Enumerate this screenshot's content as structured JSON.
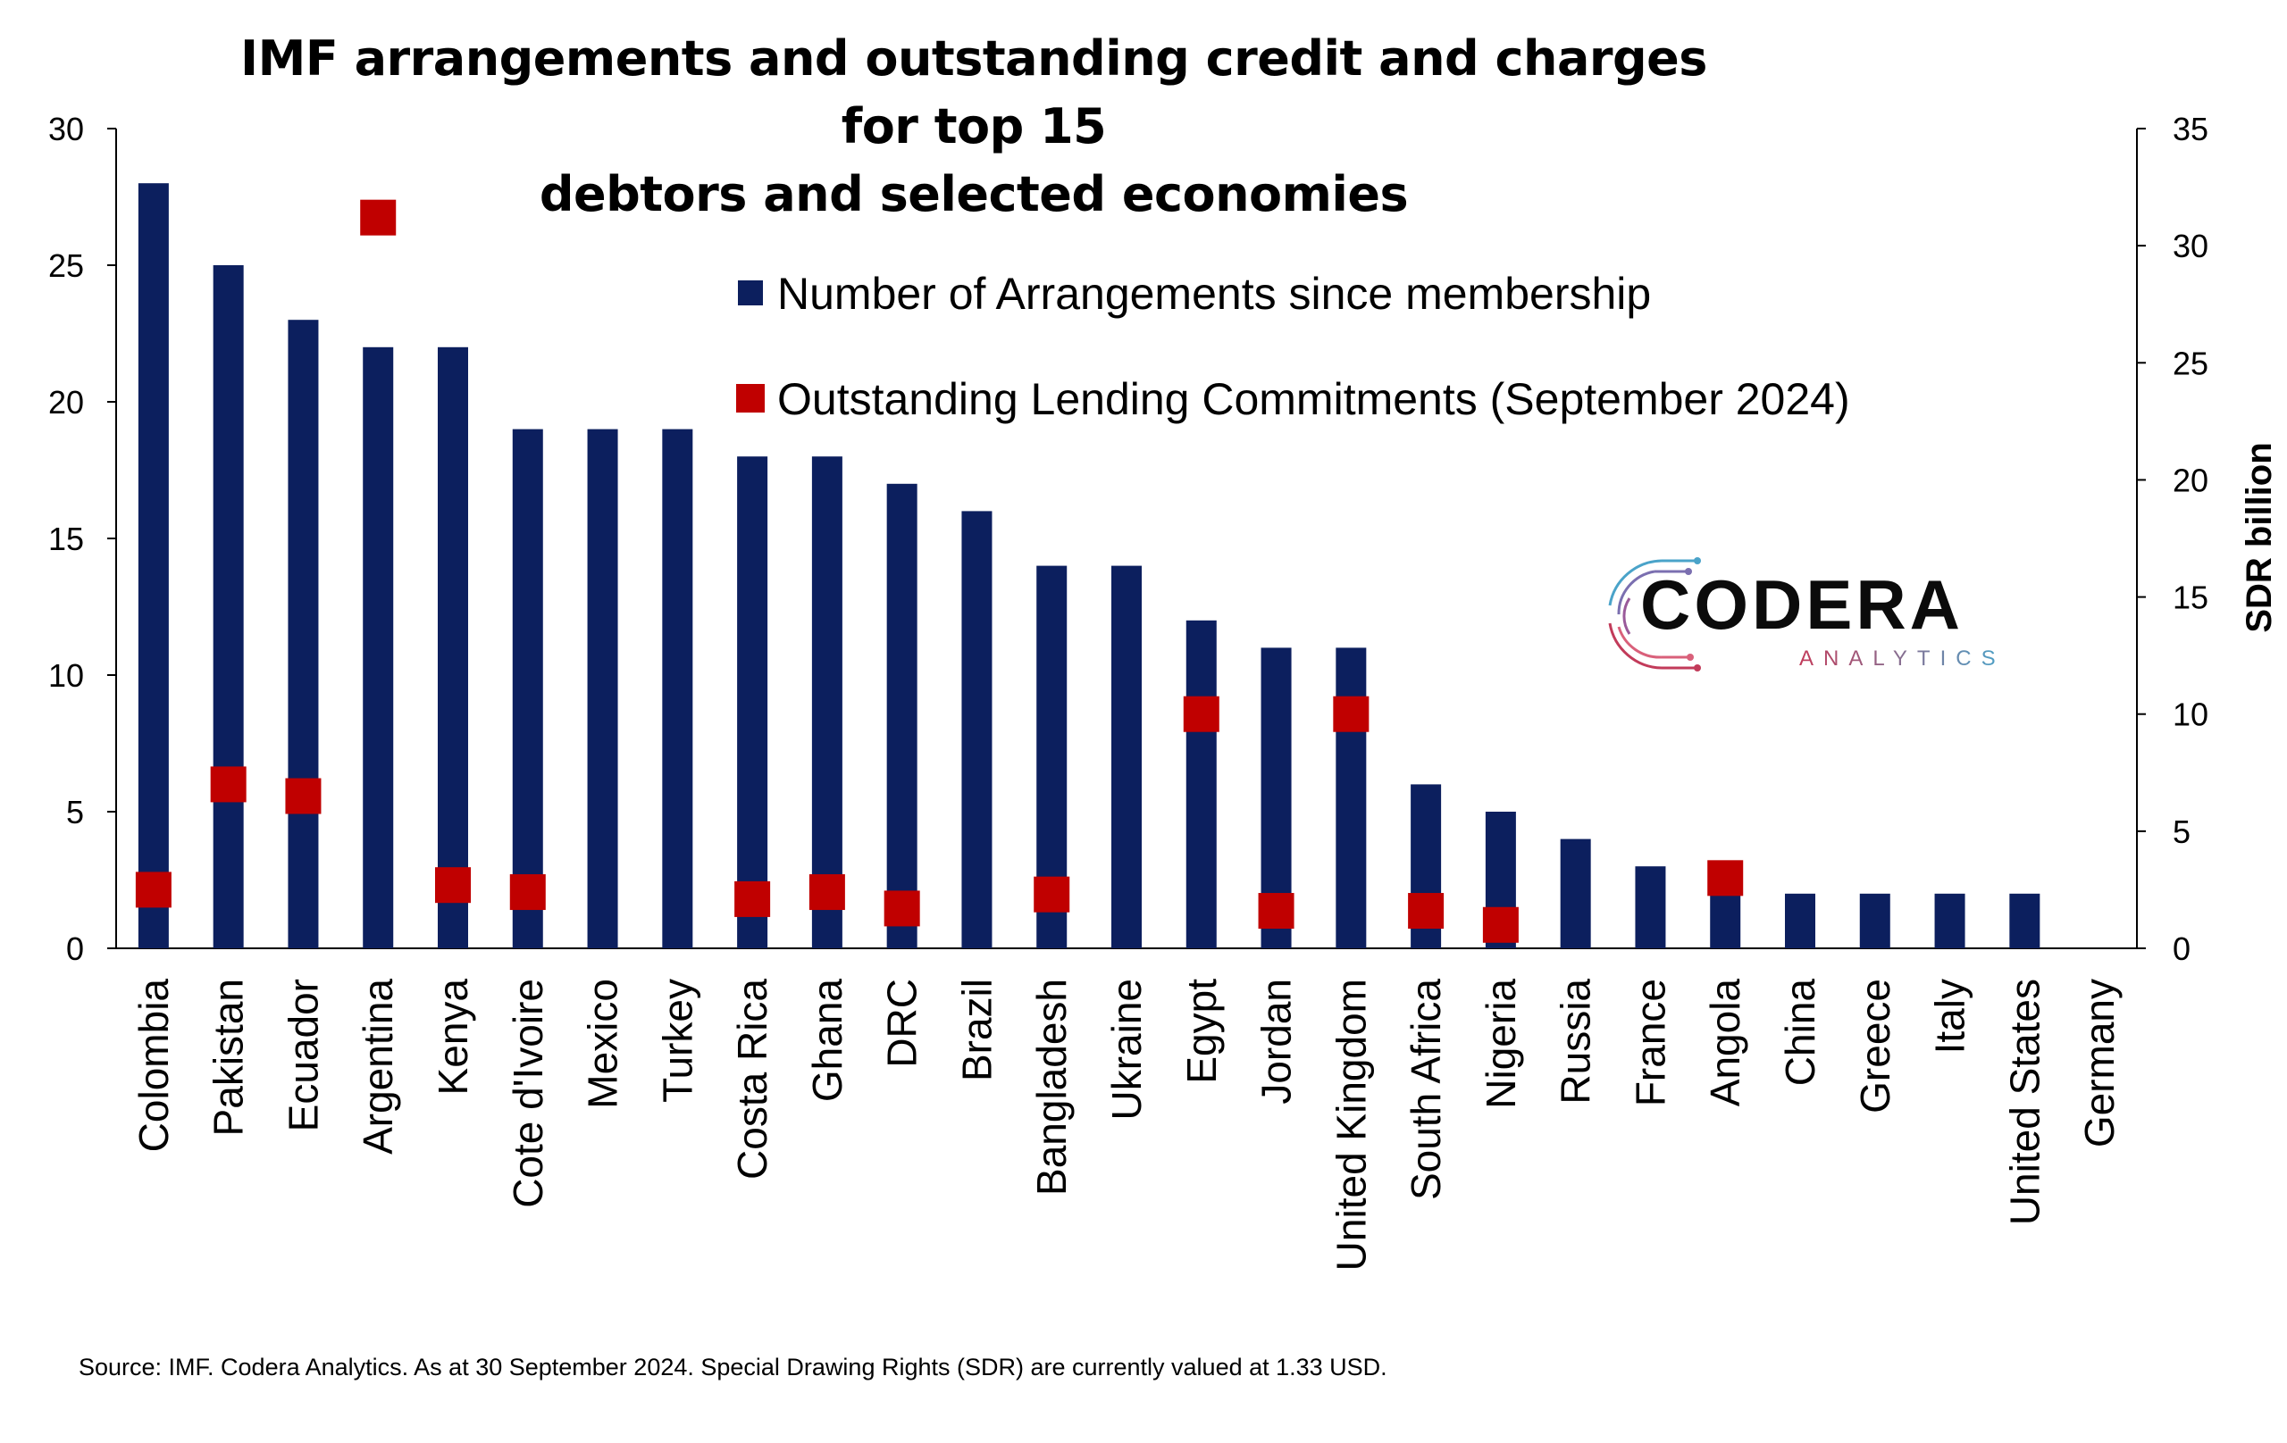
{
  "chart_data": {
    "type": "bar",
    "title": "IMF arrangements and outstanding credit and charges for top 15 debtors and selected economies",
    "categories": [
      "Colombia",
      "Pakistan",
      "Ecuador",
      "Argentina",
      "Kenya",
      "Cote d'Ivoire",
      "Mexico",
      "Turkey",
      "Costa Rica",
      "Ghana",
      "DRC",
      "Brazil",
      "Bangladesh",
      "Ukraine",
      "Egypt",
      "Jordan",
      "United Kingdom",
      "South Africa",
      "Nigeria",
      "Russia",
      "France",
      "Angola",
      "China",
      "Greece",
      "Italy",
      "United States",
      "Germany"
    ],
    "series": [
      {
        "name": "Number of Arrangements since membership",
        "type": "bar",
        "axis": "left",
        "color": "#0c1f5e",
        "values": [
          28,
          25,
          23,
          22,
          22,
          19,
          19,
          19,
          18,
          18,
          17,
          16,
          14,
          14,
          12,
          11,
          11,
          6,
          5,
          4,
          3,
          2,
          2,
          2,
          2,
          2,
          0
        ]
      },
      {
        "name": "Outstanding Lending Commitments (September 2024)",
        "type": "scatter",
        "marker": "square",
        "axis": "right",
        "color": "#c00000",
        "values": [
          2.5,
          7.0,
          6.5,
          31.2,
          2.7,
          2.4,
          null,
          null,
          2.1,
          2.4,
          1.7,
          null,
          2.3,
          null,
          10.0,
          1.6,
          10.0,
          1.6,
          1.0,
          null,
          null,
          3.0,
          null,
          null,
          null,
          null,
          null
        ]
      }
    ],
    "y_left": {
      "ylim": [
        0,
        30
      ],
      "ticks": [
        "0",
        "5",
        "10",
        "15",
        "20",
        "25",
        "30"
      ]
    },
    "y_right": {
      "ylim": [
        0,
        35
      ],
      "ticks": [
        "0",
        "5",
        "10",
        "15",
        "20",
        "25",
        "30",
        "35"
      ],
      "label": "SDR billion"
    },
    "grid": false,
    "legend_position": "top-center"
  },
  "logo": {
    "name": "CODERA",
    "sub": "ANALYTICS"
  },
  "source": "Source: IMF. Codera Analytics. As at 30 September 2024. Special Drawing Rights (SDR) are currently valued at 1.33 USD."
}
